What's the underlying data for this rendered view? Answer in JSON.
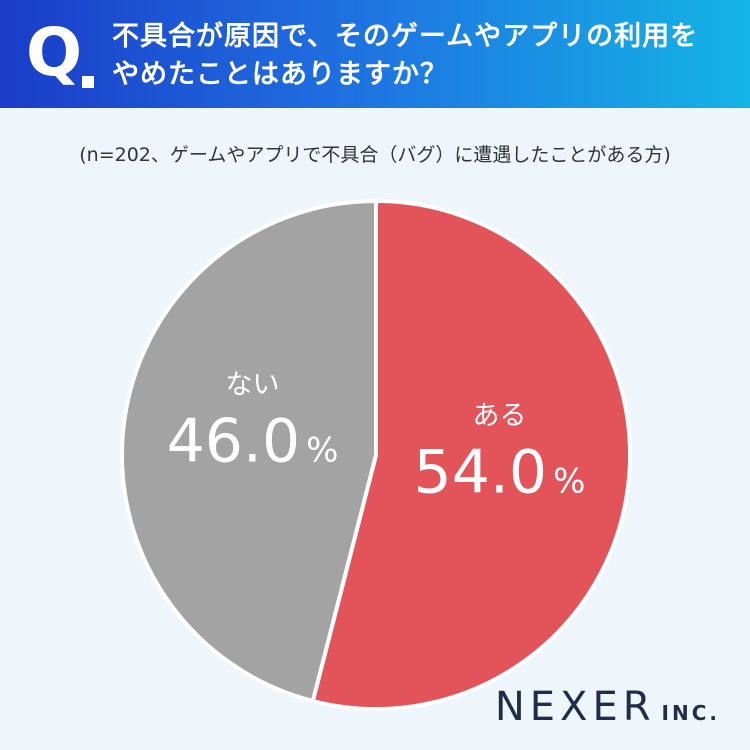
{
  "header": {
    "q_mark": "Q",
    "question_line1": "不具合が原因で、そのゲームやアプリの利用を",
    "question_line2": "やめたことはありますか？"
  },
  "note": "(n=202、ゲームやアプリで不具合（バグ）に遭遇したことがある方)",
  "chart_data": {
    "type": "pie",
    "title": "不具合が原因で、そのゲームやアプリの利用をやめたことはありますか？",
    "subtitle": "(n=202、ゲームやアプリで不具合（バグ）に遭遇したことがある方)",
    "slices": [
      {
        "label": "ある",
        "value": 54.0,
        "value_text": "54.0",
        "unit": "%",
        "color": "#e2545a"
      },
      {
        "label": "ない",
        "value": 46.0,
        "value_text": "46.0",
        "unit": "%",
        "color": "#a3a3a3"
      }
    ],
    "start": "12 o'clock",
    "direction": "clockwise"
  },
  "logo": {
    "main": "NEXER",
    "sub": "INC."
  }
}
